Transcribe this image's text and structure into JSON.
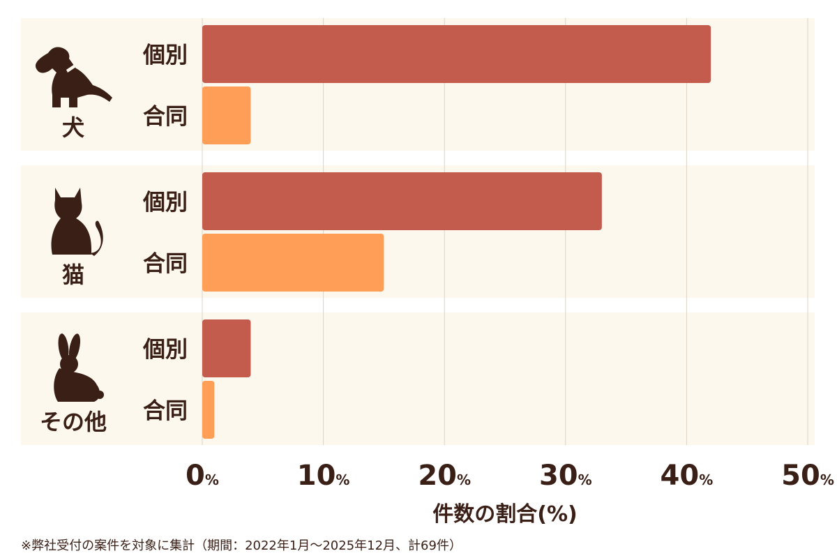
{
  "chart_data": {
    "type": "bar",
    "orientation": "horizontal",
    "groups": [
      {
        "label": "犬",
        "icon": "dog-icon"
      },
      {
        "label": "猫",
        "icon": "cat-icon"
      },
      {
        "label": "その他",
        "icon": "rabbit-icon"
      }
    ],
    "series": [
      {
        "name": "個別",
        "color": "#c45c4e",
        "values": [
          42,
          33,
          4
        ]
      },
      {
        "name": "合同",
        "color": "#ff9e57",
        "values": [
          4,
          15,
          1
        ]
      }
    ],
    "x_ticks": [
      "0",
      "10",
      "20",
      "30",
      "40",
      "50"
    ],
    "x_tick_unit": "%",
    "xlim": [
      0,
      50
    ],
    "xlabel": "件数の割合(%)",
    "grid": true
  },
  "footnote": "※弊社受付の案件を対象に集計（期間：2022年1月〜2025年12月、計69件）",
  "colors": {
    "panel_bg": "#fdf8ed",
    "text": "#3a1f16",
    "grid": "#dcd3c4"
  }
}
